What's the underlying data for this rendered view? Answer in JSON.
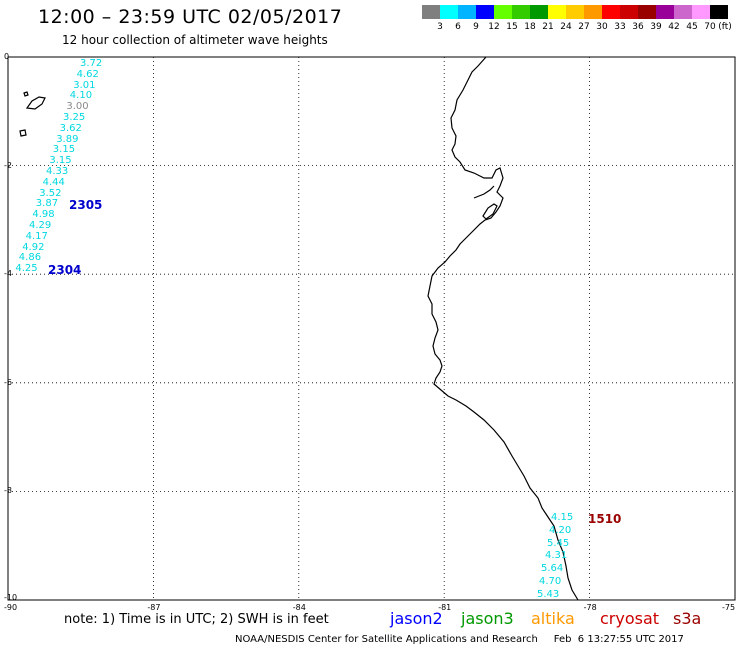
{
  "header": {
    "title": "12:00 – 23:59 UTC 02/05/2017",
    "subtitle": "12 hour collection of altimeter wave heights"
  },
  "color_scale": {
    "unit": "(ft)",
    "colors": [
      "#7f7f7f",
      "#00ffff",
      "#00b4ff",
      "#0000ff",
      "#66ff00",
      "#33cc00",
      "#009900",
      "#ffff00",
      "#ffcc00",
      "#ff9900",
      "#ff0000",
      "#cc0000",
      "#990000",
      "#990099",
      "#cc66cc",
      "#ff99ff",
      "#000000"
    ],
    "labels": [
      "3",
      "6",
      "9",
      "12",
      "15",
      "18",
      "21",
      "24",
      "27",
      "30",
      "33",
      "36",
      "39",
      "42",
      "45",
      "70"
    ]
  },
  "axes": {
    "x_ticks": [
      "-90",
      "-87",
      "-84",
      "-81",
      "-78",
      "-75"
    ],
    "y_ticks": [
      "0",
      "-2",
      "-4",
      "-6",
      "-8",
      "-10"
    ]
  },
  "passes": [
    {
      "id": "2305",
      "mission": "jason2",
      "color": "#0000cc"
    },
    {
      "id": "2304",
      "mission": "jason2",
      "color": "#0000cc"
    },
    {
      "id": "1510",
      "mission": "cryosat",
      "color": "#990000"
    }
  ],
  "track_west": [
    "3.72",
    "4.62",
    "3.01",
    "4.10",
    "3.00",
    "3.25",
    "3.62",
    "3.89",
    "3.15",
    "3.15",
    "4.33",
    "4.44",
    "3.52",
    "3.87",
    "4.98",
    "4.29",
    "4.17",
    "4.92",
    "4.86",
    "4.25"
  ],
  "track_east": [
    "4.15",
    "4.20",
    "5.45",
    "4.31",
    "5.64",
    "4.70",
    "5.43"
  ],
  "note": "note:  1) Time is in UTC;  2) SWH is in feet",
  "missions": [
    {
      "name": "jason2",
      "color": "#0000ff"
    },
    {
      "name": "jason3",
      "color": "#009900"
    },
    {
      "name": "altika",
      "color": "#ff9900"
    },
    {
      "name": "cryosat",
      "color": "#cc0000"
    },
    {
      "name": "s3a",
      "color": "#990000"
    }
  ],
  "footer": "NOAA/NESDIS Center for Satellite Applications and Research     Feb  6 13:27:55 UTC 2017"
}
